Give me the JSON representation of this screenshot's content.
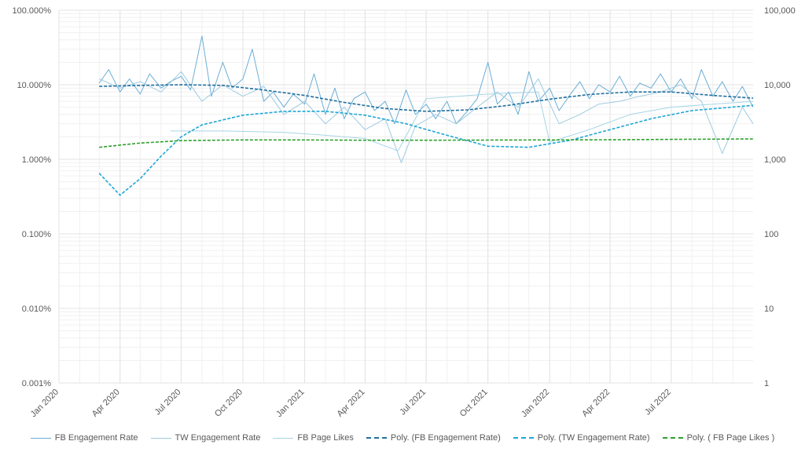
{
  "chart_data": {
    "type": "line",
    "title": "",
    "xlabel": "",
    "ylabel": "",
    "x_ticks": [
      "Jan 2020",
      "Apr 2020",
      "Jul 2020",
      "Oct 2020",
      "Jan 2021",
      "Apr 2021",
      "Jul 2021",
      "Oct 2021",
      "Jan 2022",
      "Apr 2022",
      "Jul 2022"
    ],
    "x_range": [
      "2020-01-01",
      "2022-10-31"
    ],
    "y_left": {
      "scale": "log",
      "range": [
        0.001,
        100
      ],
      "unit": "%",
      "ticks": [
        "0.001%",
        "0.010%",
        "0.100%",
        "1.000%",
        "10.000%",
        "100.000%"
      ]
    },
    "y_right": {
      "scale": "log",
      "range": [
        1,
        100000
      ],
      "ticks": [
        "1",
        "10",
        "100",
        "1,000",
        "10,000",
        "100,000"
      ]
    },
    "grid": true,
    "legend_position": "bottom",
    "colors": {
      "fb_rate": "#6BAED6",
      "tw_rate": "#9ECAE1",
      "fb_likes": "#A6D5E6",
      "poly_fb": "#1F6F9F",
      "poly_tw": "#1EA7D6",
      "poly_likes": "#2CA02C",
      "grid": "#E3E3E3",
      "axis_text": "#595959"
    },
    "series": [
      {
        "name": "FB Engagement Rate",
        "axis": "left",
        "style": "solid",
        "points": [
          [
            "2020-03-01",
            10.5
          ],
          [
            "2020-03-15",
            16.0
          ],
          [
            "2020-04-01",
            8.0
          ],
          [
            "2020-04-15",
            12.0
          ],
          [
            "2020-05-01",
            7.5
          ],
          [
            "2020-05-15",
            14.0
          ],
          [
            "2020-06-01",
            9.0
          ],
          [
            "2020-06-15",
            11.0
          ],
          [
            "2020-07-01",
            13.0
          ],
          [
            "2020-07-15",
            8.5
          ],
          [
            "2020-08-01",
            45.0
          ],
          [
            "2020-08-15",
            7.0
          ],
          [
            "2020-09-01",
            20.0
          ],
          [
            "2020-09-15",
            9.0
          ],
          [
            "2020-10-01",
            12.0
          ],
          [
            "2020-10-15",
            30.0
          ],
          [
            "2020-11-01",
            6.0
          ],
          [
            "2020-11-15",
            8.0
          ],
          [
            "2020-12-01",
            5.0
          ],
          [
            "2020-12-15",
            7.5
          ],
          [
            "2021-01-01",
            5.5
          ],
          [
            "2021-01-15",
            14.0
          ],
          [
            "2021-02-01",
            4.0
          ],
          [
            "2021-02-15",
            9.0
          ],
          [
            "2021-03-01",
            3.5
          ],
          [
            "2021-03-15",
            6.5
          ],
          [
            "2021-04-01",
            8.0
          ],
          [
            "2021-04-15",
            4.5
          ],
          [
            "2021-05-01",
            6.0
          ],
          [
            "2021-05-15",
            3.0
          ],
          [
            "2021-06-01",
            8.5
          ],
          [
            "2021-06-15",
            4.0
          ],
          [
            "2021-07-01",
            5.5
          ],
          [
            "2021-07-15",
            3.5
          ],
          [
            "2021-08-01",
            6.0
          ],
          [
            "2021-08-15",
            3.0
          ],
          [
            "2021-09-01",
            4.5
          ],
          [
            "2021-09-15",
            6.5
          ],
          [
            "2021-10-01",
            20.0
          ],
          [
            "2021-10-15",
            5.5
          ],
          [
            "2021-11-01",
            8.0
          ],
          [
            "2021-11-15",
            4.0
          ],
          [
            "2021-12-01",
            15.0
          ],
          [
            "2021-12-15",
            6.0
          ],
          [
            "2022-01-01",
            9.0
          ],
          [
            "2022-01-15",
            4.5
          ],
          [
            "2022-02-01",
            7.5
          ],
          [
            "2022-02-15",
            11.0
          ],
          [
            "2022-03-01",
            6.5
          ],
          [
            "2022-03-15",
            10.0
          ],
          [
            "2022-04-01",
            8.0
          ],
          [
            "2022-04-15",
            13.0
          ],
          [
            "2022-05-01",
            7.0
          ],
          [
            "2022-05-15",
            10.5
          ],
          [
            "2022-06-01",
            9.0
          ],
          [
            "2022-06-15",
            14.0
          ],
          [
            "2022-07-01",
            8.0
          ],
          [
            "2022-07-15",
            12.0
          ],
          [
            "2022-08-01",
            6.5
          ],
          [
            "2022-08-15",
            16.0
          ],
          [
            "2022-09-01",
            7.0
          ],
          [
            "2022-09-15",
            11.0
          ],
          [
            "2022-10-01",
            6.0
          ],
          [
            "2022-10-15",
            9.5
          ],
          [
            "2022-10-31",
            5.0
          ]
        ]
      },
      {
        "name": "TW Engagement Rate",
        "axis": "left",
        "style": "solid",
        "points": [
          [
            "2020-03-01",
            12.0
          ],
          [
            "2020-04-01",
            9.0
          ],
          [
            "2020-05-01",
            11.0
          ],
          [
            "2020-06-01",
            8.0
          ],
          [
            "2020-07-01",
            15.0
          ],
          [
            "2020-08-01",
            6.0
          ],
          [
            "2020-09-01",
            10.0
          ],
          [
            "2020-10-01",
            7.0
          ],
          [
            "2020-11-01",
            9.5
          ],
          [
            "2020-12-01",
            4.0
          ],
          [
            "2021-01-01",
            6.0
          ],
          [
            "2021-02-01",
            3.0
          ],
          [
            "2021-03-01",
            5.0
          ],
          [
            "2021-04-01",
            2.5
          ],
          [
            "2021-05-01",
            3.5
          ],
          [
            "2021-05-25",
            0.9
          ],
          [
            "2021-06-15",
            2.8
          ],
          [
            "2021-07-15",
            4.0
          ],
          [
            "2021-08-15",
            3.0
          ],
          [
            "2021-09-15",
            5.0
          ],
          [
            "2021-10-15",
            8.0
          ],
          [
            "2021-11-15",
            5.0
          ],
          [
            "2021-12-15",
            12.0
          ],
          [
            "2022-01-15",
            3.0
          ],
          [
            "2022-02-15",
            4.0
          ],
          [
            "2022-03-15",
            5.5
          ],
          [
            "2022-04-15",
            6.0
          ],
          [
            "2022-05-15",
            7.0
          ],
          [
            "2022-06-15",
            8.0
          ],
          [
            "2022-07-15",
            10.0
          ],
          [
            "2022-08-15",
            6.0
          ],
          [
            "2022-09-15",
            1.2
          ],
          [
            "2022-10-15",
            5.0
          ],
          [
            "2022-10-31",
            3.0
          ]
        ]
      },
      {
        "name": "FB Page Likes",
        "axis": "right",
        "style": "solid",
        "points": [
          [
            "2020-06-15",
            2400
          ],
          [
            "2020-09-01",
            2400
          ],
          [
            "2020-12-01",
            2300
          ],
          [
            "2021-02-01",
            2100
          ],
          [
            "2021-04-01",
            1900
          ],
          [
            "2021-05-20",
            1300
          ],
          [
            "2021-07-01",
            6500
          ],
          [
            "2021-10-01",
            7500
          ],
          [
            "2021-12-15",
            8000
          ],
          [
            "2022-01-01",
            1700
          ],
          [
            "2022-03-01",
            2500
          ],
          [
            "2022-05-01",
            4000
          ],
          [
            "2022-07-01",
            5000
          ],
          [
            "2022-09-01",
            5500
          ],
          [
            "2022-10-31",
            6000
          ]
        ]
      },
      {
        "name": "Poly. (FB Engagement Rate)",
        "axis": "left",
        "style": "dashed",
        "points": [
          [
            "2020-03-01",
            9.5
          ],
          [
            "2020-05-01",
            9.8
          ],
          [
            "2020-07-01",
            10.0
          ],
          [
            "2020-09-01",
            9.8
          ],
          [
            "2020-11-01",
            8.5
          ],
          [
            "2021-01-01",
            7.2
          ],
          [
            "2021-03-01",
            5.8
          ],
          [
            "2021-05-01",
            4.8
          ],
          [
            "2021-07-01",
            4.4
          ],
          [
            "2021-09-01",
            4.6
          ],
          [
            "2021-11-01",
            5.3
          ],
          [
            "2022-01-01",
            6.4
          ],
          [
            "2022-03-01",
            7.4
          ],
          [
            "2022-05-01",
            8.0
          ],
          [
            "2022-07-01",
            8.0
          ],
          [
            "2022-09-01",
            7.2
          ],
          [
            "2022-10-31",
            6.6
          ]
        ]
      },
      {
        "name": "Poly. (TW Engagement Rate)",
        "axis": "left",
        "style": "dashed",
        "points": [
          [
            "2020-03-01",
            0.65
          ],
          [
            "2020-04-01",
            0.33
          ],
          [
            "2020-05-01",
            0.55
          ],
          [
            "2020-06-01",
            1.1
          ],
          [
            "2020-07-01",
            2.0
          ],
          [
            "2020-08-01",
            2.9
          ],
          [
            "2020-10-01",
            3.9
          ],
          [
            "2020-12-01",
            4.4
          ],
          [
            "2021-02-01",
            4.4
          ],
          [
            "2021-04-01",
            3.9
          ],
          [
            "2021-06-01",
            3.0
          ],
          [
            "2021-08-01",
            2.1
          ],
          [
            "2021-10-01",
            1.5
          ],
          [
            "2021-12-01",
            1.45
          ],
          [
            "2022-02-01",
            1.8
          ],
          [
            "2022-04-01",
            2.5
          ],
          [
            "2022-06-01",
            3.5
          ],
          [
            "2022-08-01",
            4.5
          ],
          [
            "2022-10-31",
            5.3
          ]
        ]
      },
      {
        "name": "Poly. ( FB Page Likes )",
        "axis": "right",
        "style": "dashed",
        "points": [
          [
            "2020-03-01",
            1450
          ],
          [
            "2020-05-01",
            1650
          ],
          [
            "2020-07-01",
            1780
          ],
          [
            "2020-10-01",
            1820
          ],
          [
            "2021-01-01",
            1820
          ],
          [
            "2021-04-01",
            1800
          ],
          [
            "2021-07-01",
            1800
          ],
          [
            "2021-10-01",
            1810
          ],
          [
            "2022-01-01",
            1820
          ],
          [
            "2022-04-01",
            1830
          ],
          [
            "2022-07-01",
            1850
          ],
          [
            "2022-10-31",
            1880
          ]
        ]
      }
    ]
  }
}
